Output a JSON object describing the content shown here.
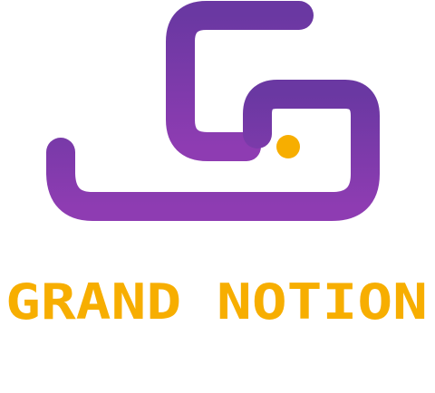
{
  "logo": {
    "name": "GRAND NOTION"
  }
}
